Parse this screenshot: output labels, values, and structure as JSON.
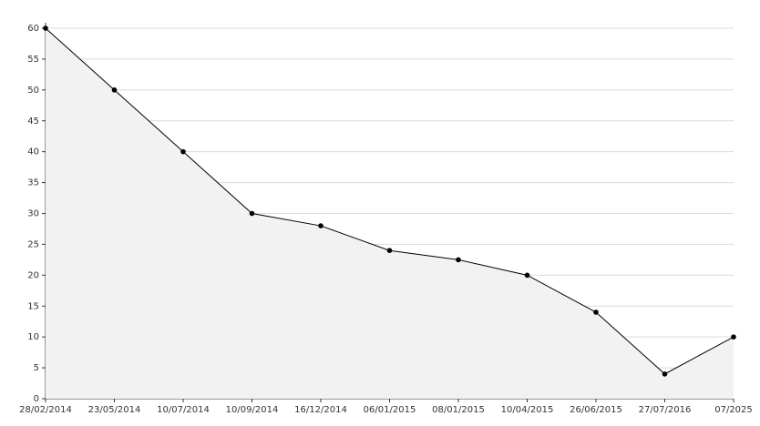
{
  "chart_data": {
    "type": "area",
    "categories": [
      "28/02/2014",
      "23/05/2014",
      "10/07/2014",
      "10/09/2014",
      "16/12/2014",
      "06/01/2015",
      "08/01/2015",
      "10/04/2015",
      "26/06/2015",
      "27/07/2016",
      "07/2025"
    ],
    "values": [
      60,
      50,
      40,
      30,
      28,
      24,
      22.5,
      20,
      14,
      4,
      10
    ],
    "color": "#000000",
    "fill_color": "#f2f2f2",
    "ylim": [
      0,
      60
    ],
    "yticks": [
      0,
      5,
      10,
      15,
      20,
      25,
      30,
      35,
      40,
      45,
      50,
      55,
      60
    ],
    "grid": true
  }
}
